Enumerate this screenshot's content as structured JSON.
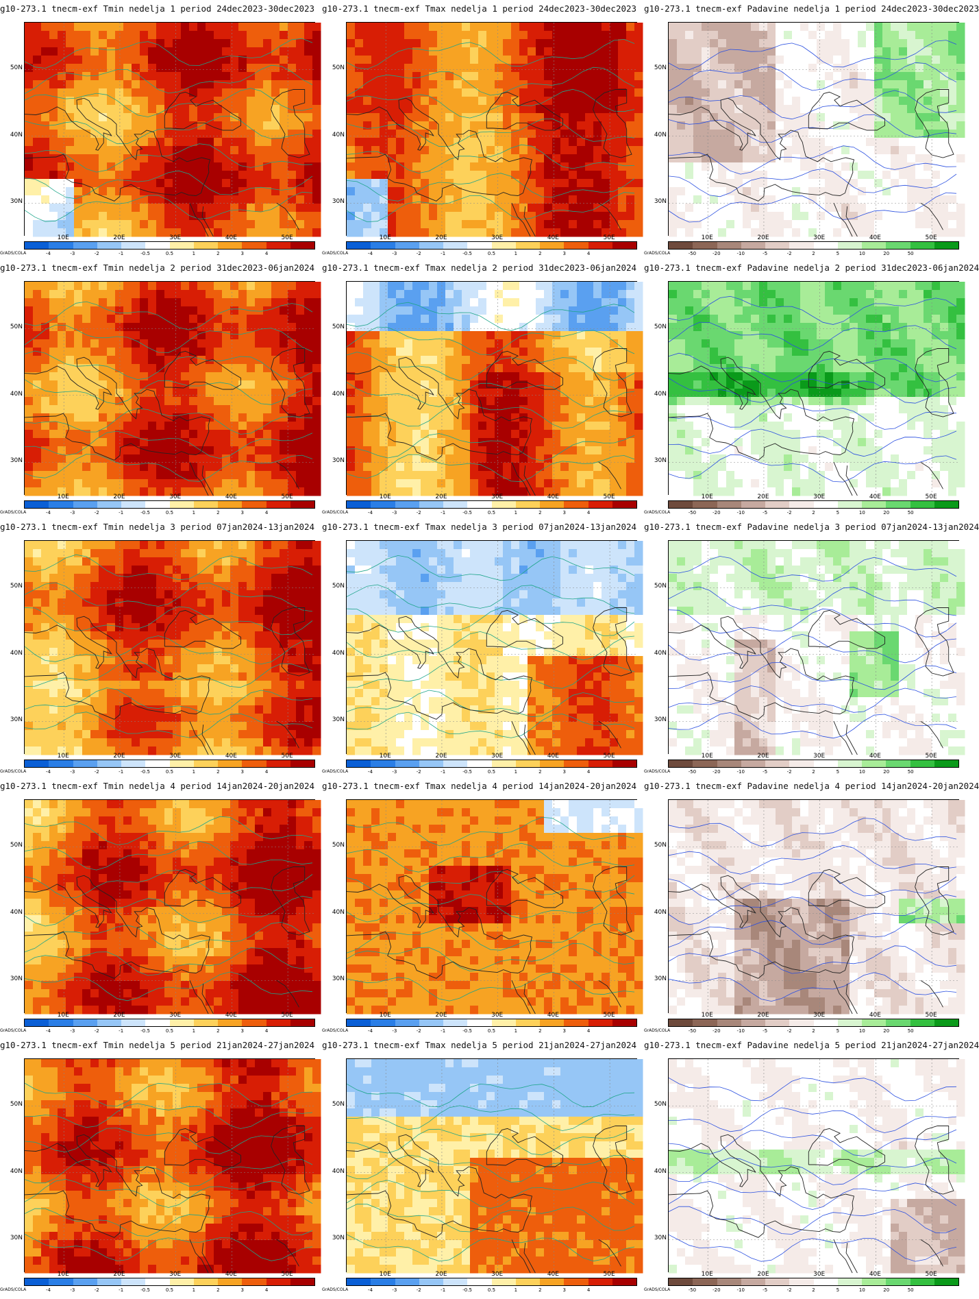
{
  "credit": "GrADS/COLA",
  "axes": {
    "lat_labels": [
      "50N",
      "40N",
      "30N"
    ],
    "lon_labels": [
      "10E",
      "20E",
      "30E",
      "40E",
      "50E"
    ]
  },
  "scales": {
    "temp": {
      "labels": [
        "-4",
        "-3",
        "-2",
        "-1",
        "-0.5",
        "0.5",
        "1",
        "2",
        "3",
        "4"
      ],
      "colors": [
        "#0a5fd6",
        "#2a7ee6",
        "#5aa0f0",
        "#96c6f6",
        "#cde4fb",
        "#ffffff",
        "#fff0a8",
        "#fdd15a",
        "#f7a323",
        "#ee5e0c",
        "#d81e05",
        "#a80000"
      ]
    },
    "precip": {
      "labels": [
        "-50",
        "-20",
        "-10",
        "-5",
        "-2",
        "2",
        "5",
        "10",
        "20",
        "50"
      ],
      "colors": [
        "#6e4a3c",
        "#8c6656",
        "#a8877a",
        "#c6a9a0",
        "#e2cdc6",
        "#f5ebe8",
        "#ffffff",
        "#d8f5d0",
        "#a8ec98",
        "#6ad870",
        "#34c040",
        "#0a9a1a"
      ]
    }
  },
  "panels": [
    {
      "title": "g10-273.1 tnecm-exf Tmin nedelja 1 period 24dec2023-30dec2023",
      "var": "tmin",
      "week": 1
    },
    {
      "title": "g10-273.1 tnecm-exf Tmax nedelja 1 period 24dec2023-30dec2023",
      "var": "tmax",
      "week": 1
    },
    {
      "title": "g10-273.1 tnecm-exf Padavine nedelja 1 period 24dec2023-30dec2023",
      "var": "precip",
      "week": 1
    },
    {
      "title": "g10-273.1 tnecm-exf Tmin nedelja 2 period 31dec2023-06jan2024",
      "var": "tmin",
      "week": 2
    },
    {
      "title": "g10-273.1 tnecm-exf Tmax nedelja 2 period 31dec2023-06jan2024",
      "var": "tmax",
      "week": 2
    },
    {
      "title": "g10-273.1 tnecm-exf Padavine nedelja 2 period 31dec2023-06jan2024",
      "var": "precip",
      "week": 2
    },
    {
      "title": "g10-273.1 tnecm-exf Tmin nedelja 3 period 07jan2024-13jan2024",
      "var": "tmin",
      "week": 3
    },
    {
      "title": "g10-273.1 tnecm-exf Tmax nedelja 3 period 07jan2024-13jan2024",
      "var": "tmax",
      "week": 3
    },
    {
      "title": "g10-273.1 tnecm-exf Padavine nedelja 3 period 07jan2024-13jan2024",
      "var": "precip",
      "week": 3
    },
    {
      "title": "g10-273.1 tnecm-exf Tmin nedelja 4 period 14jan2024-20jan2024",
      "var": "tmin",
      "week": 4
    },
    {
      "title": "g10-273.1 tnecm-exf Tmax nedelja 4 period 14jan2024-20jan2024",
      "var": "tmax",
      "week": 4
    },
    {
      "title": "g10-273.1 tnecm-exf Padavine nedelja 4 period 14jan2024-20jan2024",
      "var": "precip",
      "week": 4
    },
    {
      "title": "g10-273.1 tnecm-exf Tmin nedelja 5 period 21jan2024-27jan2024",
      "var": "tmin",
      "week": 5
    },
    {
      "title": "g10-273.1 tnecm-exf Tmax nedelja 5 period 21jan2024-27jan2024",
      "var": "tmax",
      "week": 5
    },
    {
      "title": "g10-273.1 tnecm-exf Padavine nedelja 5 period 21jan2024-27jan2024",
      "var": "precip",
      "week": 5
    }
  ]
}
